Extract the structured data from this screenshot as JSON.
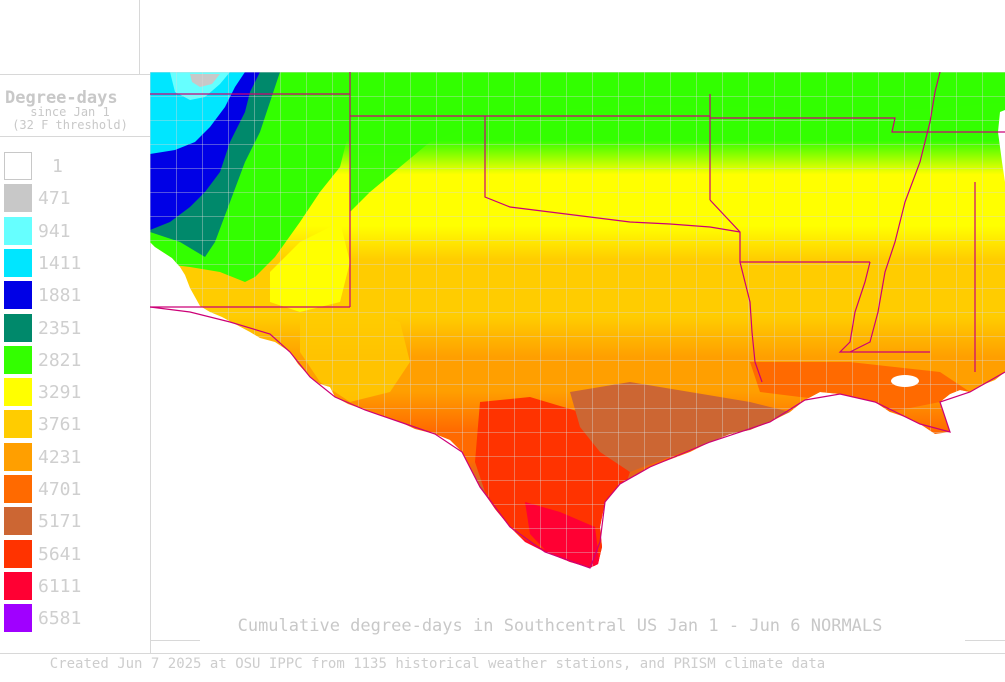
{
  "legend": {
    "title": "Degree-days",
    "subtitle": "since Jan 1",
    "threshold": "(32 F threshold)",
    "items": [
      {
        "label": "1",
        "color": "#ffffff"
      },
      {
        "label": "471",
        "color": "#c8c8c8"
      },
      {
        "label": "941",
        "color": "#66ffff"
      },
      {
        "label": "1411",
        "color": "#00e6ff"
      },
      {
        "label": "1881",
        "color": "#0000e6"
      },
      {
        "label": "2351",
        "color": "#00896b"
      },
      {
        "label": "2821",
        "color": "#33ff00"
      },
      {
        "label": "3291",
        "color": "#ffff00"
      },
      {
        "label": "3761",
        "color": "#ffcc00"
      },
      {
        "label": "4231",
        "color": "#ff9f00"
      },
      {
        "label": "4701",
        "color": "#ff6a00"
      },
      {
        "label": "5171",
        "color": "#cc6633"
      },
      {
        "label": "5641",
        "color": "#ff3300"
      },
      {
        "label": "6111",
        "color": "#ff0033"
      },
      {
        "label": "6581",
        "color": "#a000ff"
      }
    ]
  },
  "map": {
    "region": "Southcentral US",
    "state_border_color": "#cc0077",
    "county_line_color": "#d9d9d9"
  },
  "caption": "Cumulative degree-days in Southcentral US Jan 1 - Jun 6 NORMALS",
  "credit": "Created Jun 7 2025 at OSU IPPC from 1135 historical weather stations, and PRISM climate data"
}
